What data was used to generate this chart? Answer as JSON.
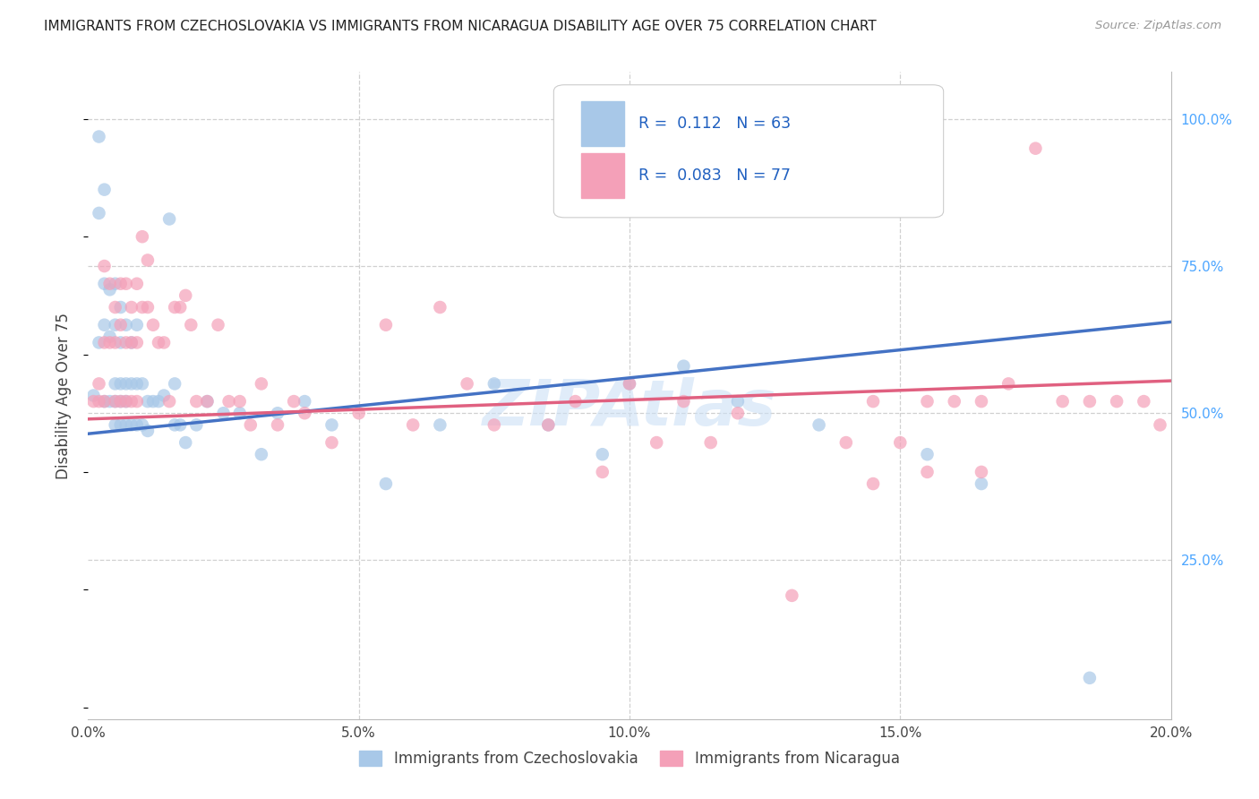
{
  "title": "IMMIGRANTS FROM CZECHOSLOVAKIA VS IMMIGRANTS FROM NICARAGUA DISABILITY AGE OVER 75 CORRELATION CHART",
  "source": "Source: ZipAtlas.com",
  "ylabel": "Disability Age Over 75",
  "legend1_label": "Immigrants from Czechoslovakia",
  "legend2_label": "Immigrants from Nicaragua",
  "R1": 0.112,
  "N1": 63,
  "R2": 0.083,
  "N2": 77,
  "color1": "#a8c8e8",
  "color2": "#f4a0b8",
  "line1_color": "#4472c4",
  "line2_color": "#e06080",
  "background_color": "#ffffff",
  "grid_color": "#d0d0d0",
  "xlim": [
    0.0,
    0.2
  ],
  "ylim": [
    -0.02,
    1.08
  ],
  "ytick_positions": [
    0.0,
    0.25,
    0.5,
    0.75,
    1.0
  ],
  "ytick_labels": [
    "",
    "25.0%",
    "50.0%",
    "75.0%",
    "100.0%"
  ],
  "xtick_positions": [
    0.0,
    0.05,
    0.1,
    0.15,
    0.2
  ],
  "xtick_labels": [
    "0.0%",
    "5.0%",
    "10.0%",
    "15.0%",
    "20.0%"
  ],
  "blue_line_y0": 0.465,
  "blue_line_y1": 0.655,
  "pink_line_y0": 0.49,
  "pink_line_y1": 0.555,
  "blue_x": [
    0.001,
    0.002,
    0.002,
    0.002,
    0.003,
    0.003,
    0.003,
    0.003,
    0.004,
    0.004,
    0.004,
    0.005,
    0.005,
    0.005,
    0.005,
    0.005,
    0.006,
    0.006,
    0.006,
    0.006,
    0.006,
    0.007,
    0.007,
    0.007,
    0.007,
    0.008,
    0.008,
    0.008,
    0.009,
    0.009,
    0.009,
    0.01,
    0.01,
    0.011,
    0.011,
    0.012,
    0.013,
    0.014,
    0.015,
    0.016,
    0.016,
    0.017,
    0.018,
    0.02,
    0.022,
    0.025,
    0.028,
    0.032,
    0.035,
    0.04,
    0.045,
    0.055,
    0.065,
    0.075,
    0.085,
    0.095,
    0.1,
    0.11,
    0.12,
    0.135,
    0.155,
    0.165,
    0.185
  ],
  "blue_y": [
    0.53,
    0.97,
    0.84,
    0.62,
    0.88,
    0.72,
    0.65,
    0.52,
    0.71,
    0.63,
    0.52,
    0.72,
    0.65,
    0.55,
    0.52,
    0.48,
    0.68,
    0.62,
    0.55,
    0.52,
    0.48,
    0.65,
    0.55,
    0.52,
    0.48,
    0.62,
    0.55,
    0.48,
    0.65,
    0.55,
    0.48,
    0.55,
    0.48,
    0.52,
    0.47,
    0.52,
    0.52,
    0.53,
    0.83,
    0.55,
    0.48,
    0.48,
    0.45,
    0.48,
    0.52,
    0.5,
    0.5,
    0.43,
    0.5,
    0.52,
    0.48,
    0.38,
    0.48,
    0.55,
    0.48,
    0.43,
    0.55,
    0.58,
    0.52,
    0.48,
    0.43,
    0.38,
    0.05
  ],
  "pink_x": [
    0.001,
    0.002,
    0.002,
    0.003,
    0.003,
    0.003,
    0.004,
    0.004,
    0.005,
    0.005,
    0.005,
    0.006,
    0.006,
    0.006,
    0.007,
    0.007,
    0.007,
    0.008,
    0.008,
    0.008,
    0.009,
    0.009,
    0.009,
    0.01,
    0.01,
    0.011,
    0.011,
    0.012,
    0.013,
    0.014,
    0.015,
    0.016,
    0.017,
    0.018,
    0.019,
    0.02,
    0.022,
    0.024,
    0.026,
    0.028,
    0.03,
    0.032,
    0.035,
    0.038,
    0.04,
    0.045,
    0.05,
    0.055,
    0.06,
    0.065,
    0.07,
    0.075,
    0.085,
    0.09,
    0.095,
    0.1,
    0.105,
    0.11,
    0.115,
    0.12,
    0.13,
    0.14,
    0.145,
    0.15,
    0.155,
    0.16,
    0.165,
    0.17,
    0.175,
    0.18,
    0.185,
    0.19,
    0.195,
    0.198,
    0.145,
    0.155,
    0.165
  ],
  "pink_y": [
    0.52,
    0.55,
    0.52,
    0.75,
    0.62,
    0.52,
    0.72,
    0.62,
    0.68,
    0.62,
    0.52,
    0.72,
    0.65,
    0.52,
    0.72,
    0.62,
    0.52,
    0.68,
    0.62,
    0.52,
    0.72,
    0.62,
    0.52,
    0.8,
    0.68,
    0.76,
    0.68,
    0.65,
    0.62,
    0.62,
    0.52,
    0.68,
    0.68,
    0.7,
    0.65,
    0.52,
    0.52,
    0.65,
    0.52,
    0.52,
    0.48,
    0.55,
    0.48,
    0.52,
    0.5,
    0.45,
    0.5,
    0.65,
    0.48,
    0.68,
    0.55,
    0.48,
    0.48,
    0.52,
    0.4,
    0.55,
    0.45,
    0.52,
    0.45,
    0.5,
    0.19,
    0.45,
    0.52,
    0.45,
    0.52,
    0.52,
    0.52,
    0.55,
    0.95,
    0.52,
    0.52,
    0.52,
    0.52,
    0.48,
    0.38,
    0.4,
    0.4
  ]
}
